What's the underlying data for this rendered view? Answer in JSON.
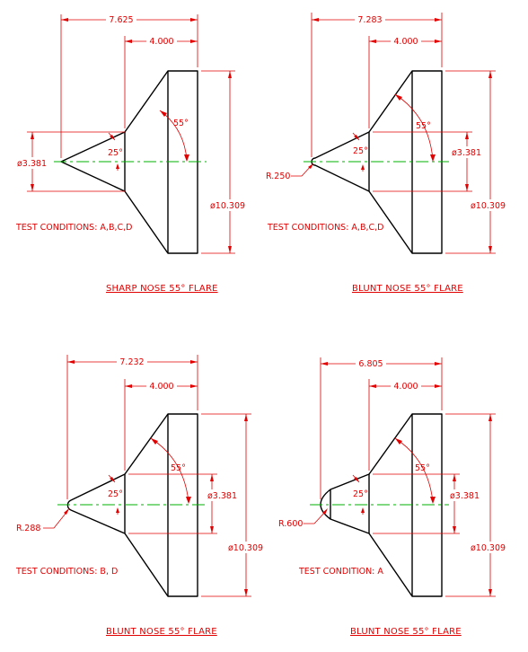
{
  "colors": {
    "object": "#000000",
    "dimension": "#e00000",
    "centerline": "#00b000",
    "background": "#ffffff"
  },
  "views": [
    {
      "title": "SHARP NOSE 55° FLARE",
      "overall_length": "7.625",
      "flare_length": "4.000",
      "flare_angle": "55°",
      "nose_angle": "25°",
      "cone_diameter": "ø3.381",
      "base_diameter": "ø10.309",
      "test_conditions": "TEST CONDITIONS: A,B,C,D"
    },
    {
      "title": "BLUNT NOSE 55° FLARE",
      "overall_length": "7.283",
      "flare_length": "4.000",
      "flare_angle": "55°",
      "nose_angle": "25°",
      "cone_diameter": "ø3.381",
      "base_diameter": "ø10.309",
      "nose_radius": "R.250",
      "test_conditions": "TEST CONDITIONS: A,B,C,D"
    },
    {
      "title": "BLUNT NOSE 55° FLARE",
      "overall_length": "7.232",
      "flare_length": "4.000",
      "flare_angle": "55°",
      "nose_angle": "25°",
      "cone_diameter": "ø3.381",
      "base_diameter": "ø10.309",
      "nose_radius": "R.288",
      "test_conditions": "TEST CONDITIONS: B, D"
    },
    {
      "title": "BLUNT NOSE 55° FLARE",
      "overall_length": "6.805",
      "flare_length": "4.000",
      "flare_angle": "55°",
      "nose_angle": "25°",
      "cone_diameter": "ø3.381",
      "base_diameter": "ø10.309",
      "nose_radius": "R.600",
      "test_conditions": "TEST CONDITION: A"
    }
  ]
}
